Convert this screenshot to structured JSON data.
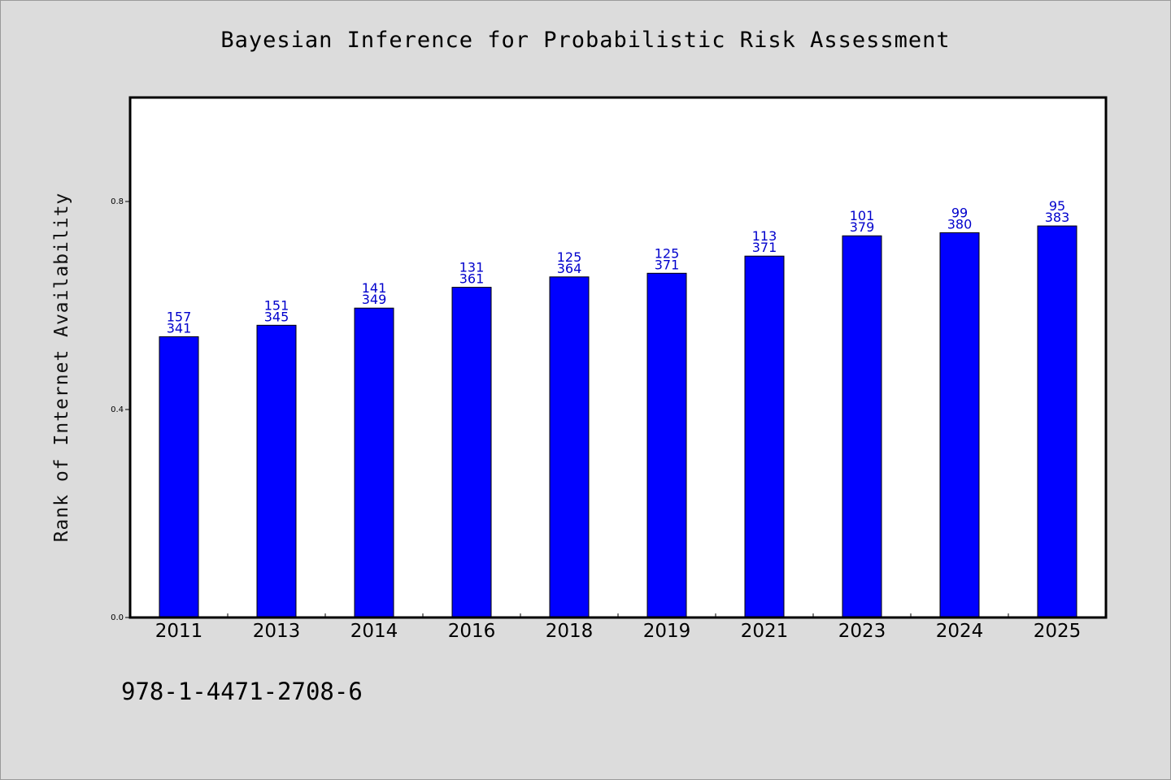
{
  "chart_data": {
    "type": "bar",
    "title": "Bayesian Inference for Probabilistic Risk Assessment",
    "xlabel": "",
    "ylabel": "Rank of Internet Availability",
    "categories": [
      "2011",
      "2013",
      "2014",
      "2016",
      "2018",
      "2019",
      "2021",
      "2023",
      "2024",
      "2025"
    ],
    "values": [
      0.54,
      0.562,
      0.595,
      0.635,
      0.655,
      0.662,
      0.695,
      0.734,
      0.74,
      0.753
    ],
    "label_top": [
      "157",
      "151",
      "141",
      "131",
      "125",
      "125",
      "113",
      "101",
      "99",
      "95"
    ],
    "label_bottom": [
      "341",
      "345",
      "349",
      "361",
      "364",
      "371",
      "371",
      "379",
      "380",
      "383"
    ],
    "ylim": [
      0.0,
      1.0
    ],
    "yticks": [
      "0.0",
      "0.4",
      "0.8"
    ],
    "ytick_values": [
      0.0,
      0.4,
      0.8
    ],
    "bar_color": "#0000ff",
    "label_color": "#0000cc",
    "grid": false
  },
  "footer": {
    "isbn": "978-1-4471-2708-6"
  }
}
